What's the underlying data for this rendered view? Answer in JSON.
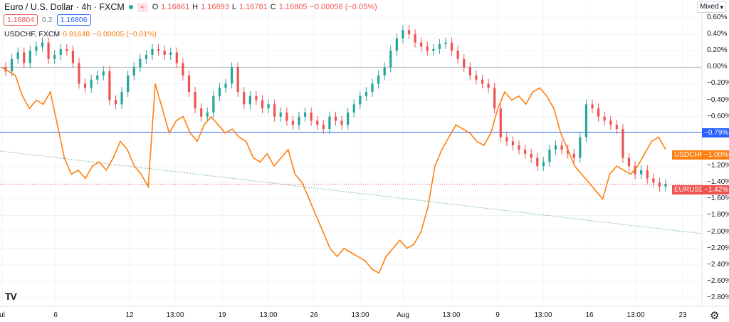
{
  "header": {
    "symbol_title": "Euro / U.S. Dollar · 4h · FXCM",
    "ohlc": {
      "o_label": "O",
      "o": "1.16861",
      "h_label": "H",
      "h": "1.16893",
      "l_label": "L",
      "l": "1.16781",
      "c_label": "C",
      "c": "1.16805",
      "change": "−0.00056 (−0.05%)"
    }
  },
  "trade": {
    "sell": "1.16804",
    "spread": "0.2",
    "buy": "1.16806"
  },
  "compare": {
    "symbol": "USDCHF, FXCM",
    "value": "0.91648",
    "change": "−0.00005 (−0.01%)"
  },
  "scale_button": "Mixed",
  "price_axis": [
    "0.60%",
    "0.40%",
    "0.20%",
    "0.00%",
    "−0.20%",
    "−0.40%",
    "−0.60%",
    "−1.20%",
    "−1.40%",
    "−1.60%",
    "−1.80%",
    "−2.00%",
    "−2.20%",
    "−2.40%",
    "−2.60%",
    "−2.80%"
  ],
  "tags": {
    "blue_line": "−0.79%",
    "usdchf_name": "USDCHF",
    "usdchf_value": "−1.00%",
    "eurusd_name": "EURUSD",
    "eurusd_value": "−1.42%"
  },
  "time_axis": [
    "ul",
    "6",
    "12",
    "13:00",
    "19",
    "13:00",
    "26",
    "13:00",
    "Aug",
    "13:00",
    "9",
    "13:00",
    "16",
    "13:00",
    "23"
  ],
  "colors": {
    "up": "#26a69a",
    "down": "#ef5350",
    "compare_line": "#ff7f0e",
    "hline_blue": "#2962ff",
    "zero_line": "#b2b5be",
    "trend": "#7fb8b0"
  },
  "chart_data": {
    "type": "line",
    "y_unit": "%",
    "ylim": [
      -2.8,
      0.6
    ],
    "eurusd_candles_close_pct": [
      -0.05,
      0.1,
      0.18,
      0.05,
      0.2,
      0.25,
      0.3,
      0.1,
      0.15,
      0.22,
      0.2,
      0.05,
      -0.2,
      -0.25,
      -0.15,
      -0.1,
      -0.05,
      -0.4,
      -0.45,
      -0.3,
      -0.1,
      0.0,
      0.1,
      0.15,
      0.22,
      0.2,
      0.15,
      0.18,
      0.05,
      -0.1,
      -0.3,
      -0.5,
      -0.6,
      -0.55,
      -0.35,
      -0.25,
      -0.2,
      0.0,
      -0.3,
      -0.45,
      -0.35,
      -0.4,
      -0.5,
      -0.45,
      -0.6,
      -0.55,
      -0.65,
      -0.7,
      -0.6,
      -0.55,
      -0.65,
      -0.7,
      -0.75,
      -0.6,
      -0.65,
      -0.7,
      -0.55,
      -0.45,
      -0.35,
      -0.3,
      -0.2,
      -0.1,
      0.0,
      0.2,
      0.35,
      0.45,
      0.4,
      0.3,
      0.25,
      0.2,
      0.22,
      0.28,
      0.3,
      0.2,
      0.1,
      0.0,
      -0.1,
      -0.15,
      -0.2,
      -0.25,
      -0.5,
      -0.85,
      -0.9,
      -0.95,
      -1.0,
      -1.05,
      -1.1,
      -1.2,
      -1.15,
      -1.0,
      -0.95,
      -1.0,
      -1.05,
      -1.1,
      -0.85,
      -0.45,
      -0.5,
      -0.6,
      -0.65,
      -0.7,
      -0.75,
      -1.1,
      -1.2,
      -1.3,
      -1.25,
      -1.35,
      -1.4,
      -1.45,
      -1.42
    ],
    "usdchf_line_pct": [
      0.0,
      -0.05,
      -0.1,
      -0.35,
      -0.5,
      -0.4,
      -0.45,
      -0.3,
      -0.7,
      -1.1,
      -1.3,
      -1.25,
      -1.35,
      -1.2,
      -1.15,
      -1.25,
      -1.1,
      -0.9,
      -1.0,
      -1.2,
      -1.3,
      -1.45,
      -0.2,
      -0.5,
      -0.8,
      -0.65,
      -0.6,
      -0.8,
      -0.9,
      -0.7,
      -0.6,
      -0.7,
      -0.8,
      -0.75,
      -0.85,
      -0.9,
      -1.1,
      -1.15,
      -1.05,
      -1.2,
      -1.1,
      -1.0,
      -1.3,
      -1.4,
      -1.6,
      -1.8,
      -2.0,
      -2.2,
      -2.3,
      -2.2,
      -2.25,
      -2.3,
      -2.35,
      -2.45,
      -2.5,
      -2.3,
      -2.2,
      -2.1,
      -2.2,
      -2.15,
      -2.0,
      -1.7,
      -1.2,
      -1.0,
      -0.85,
      -0.7,
      -0.75,
      -0.8,
      -0.9,
      -0.95,
      -0.8,
      -0.5,
      -0.3,
      -0.4,
      -0.35,
      -0.45,
      -0.3,
      -0.25,
      -0.35,
      -0.5,
      -0.8,
      -1.0,
      -1.2,
      -1.3,
      -1.4,
      -1.5,
      -1.6,
      -1.3,
      -1.2,
      -1.25,
      -1.3,
      -1.2,
      -1.05,
      -0.9,
      -0.85,
      -1.0
    ]
  }
}
